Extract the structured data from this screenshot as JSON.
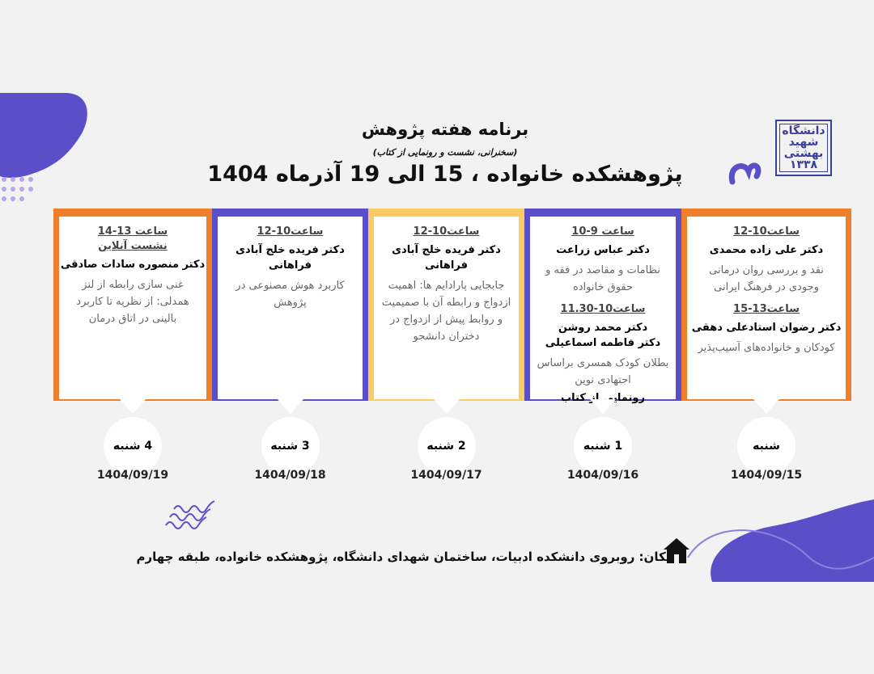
{
  "header": {
    "title": "برنامه هفته پژوهش",
    "subtitle": "(سخنرانی، نشست و رونمایی از کتاب)",
    "headline": "پژوهشکده خانواده ، 15 الی 19 آذرماه 1404",
    "logo_text": "دانشگاه شهید بهشتی ۱۳۳۸"
  },
  "colors": {
    "orange": "#F07F2C",
    "purple": "#5A4FC8",
    "yellow": "#FDCB63",
    "background": "#F2F2F2"
  },
  "days": [
    {
      "day": "شنبه",
      "date": "1404/09/15",
      "color": "#F07F2C",
      "sessions": [
        {
          "time": "ساعت10-12",
          "name": "دکتر علی زاده محمدی",
          "topic": "نقد و بررسی روان درمانی وجودی در فرهنگ ایرانی"
        },
        {
          "time": "ساعت13-15",
          "name": "دکتر رضوان استادعلی دهقی",
          "topic": "کودکان و خانواده‌های آسیب‌پذیر"
        }
      ]
    },
    {
      "day": "1 شنبه",
      "date": "1404/09/16",
      "color": "#5A4FC8",
      "sessions": [
        {
          "time": "ساعت 9-10",
          "name": "دکتر عباس زراعت",
          "topic": "نظامات و مقاصد در فقه و حقوق خانواده"
        },
        {
          "time": "ساعت10-11.30",
          "name": "دکتر محمد روشن\nدکتر فاطمه اسماعیلی",
          "topic": "بطلان کودک همسری براساس اجتهادی نوین",
          "extra": "رونمایی از کتاب"
        }
      ]
    },
    {
      "day": "2 شنبه",
      "date": "1404/09/17",
      "color": "#FDCB63",
      "sessions": [
        {
          "time": "ساعت10-12",
          "name": "دکتر فریده خلج آبادی فراهانی",
          "topic": "جابجایی پارادایم ها: اهمیت ازدواج و رابطه آن با صمیمیت و روابط پیش از ازدواج در دختران دانشجو"
        }
      ]
    },
    {
      "day": "3 شنبه",
      "date": "1404/09/18",
      "color": "#5A4FC8",
      "sessions": [
        {
          "time": "ساعت10-12",
          "name": "دکتر فریده خلج آبادی فراهانی",
          "topic": "کاربرد هوش مصنوعی در پژوهش"
        }
      ]
    },
    {
      "day": "4 شنبه",
      "date": "1404/09/19",
      "color": "#F07F2C",
      "sessions": [
        {
          "time": "ساعت 13-14\nنشست آنلاین",
          "name": "دکتر منصوره سادات صادقی",
          "topic": "غنی سازی رابطه از لنز همدلی: از نظریه تا کاربرد بالینی در اتاق درمان"
        }
      ]
    }
  ],
  "location": {
    "icon": "home-icon",
    "text": "مکان: روبروی دانشکده ادبیات، ساختمان شهدای دانشگاه، پژوهشکده خانواده، طبقه چهارم"
  }
}
